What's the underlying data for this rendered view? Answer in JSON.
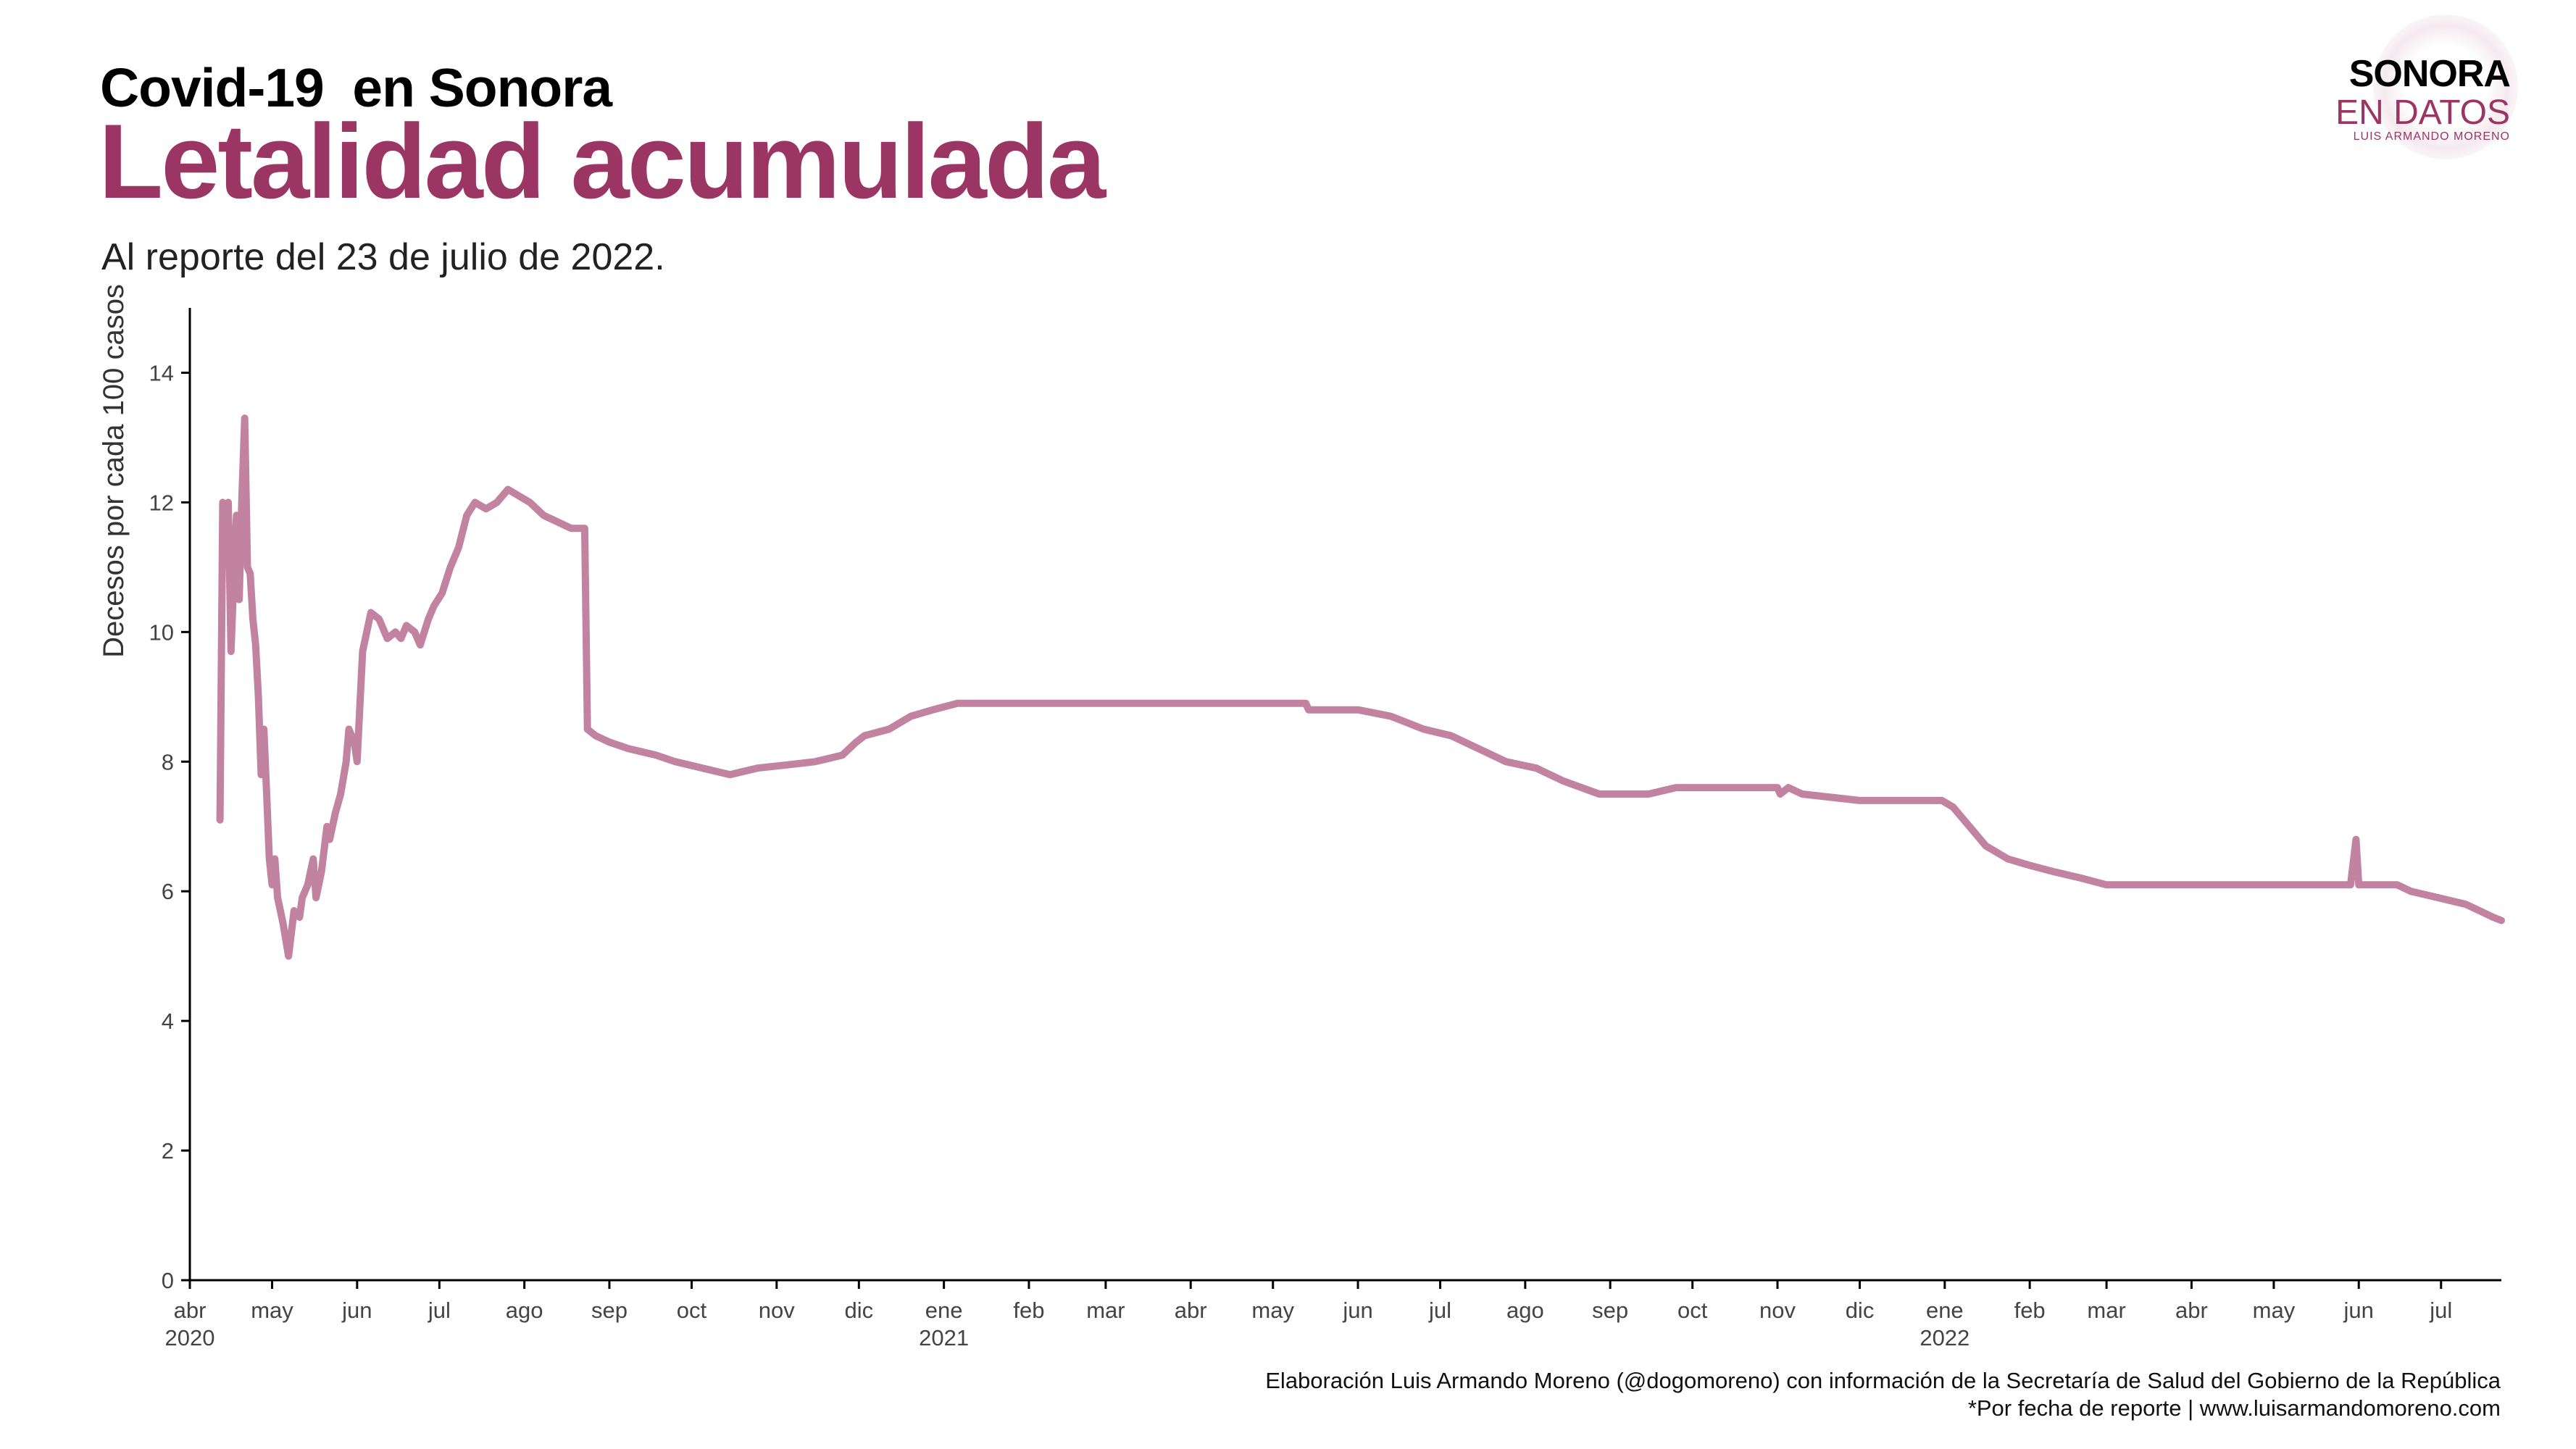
{
  "header": {
    "kicker": "Covid-19  en Sonora",
    "title": "Letalidad acumulada",
    "subtitle": "Al reporte del 23 de julio de 2022."
  },
  "logo": {
    "line1": "SONORA",
    "line2": "EN DATOS",
    "line3": "LUIS ARMANDO MORENO"
  },
  "footer": {
    "credit": "Elaboración Luis Armando Moreno (@dogomoreno) con información de la Secretaría de Salud del Gobierno de la República",
    "note": "*Por fecha de reporte | www.luisarmandomoreno.com"
  },
  "colors": {
    "accent": "#9b3564",
    "line": "#c283a1",
    "axis": "#000000"
  },
  "chart_data": {
    "type": "line",
    "title": "Letalidad acumulada",
    "subtitle": "Al reporte del 23 de julio de 2022.",
    "xlabel": "",
    "ylabel": "Decesos por cada 100 casos",
    "xlim": [
      "2020-04-01",
      "2022-07-23"
    ],
    "ylim": [
      0,
      15
    ],
    "yticks": [
      0,
      2,
      4,
      6,
      8,
      10,
      12,
      14
    ],
    "xticks": [
      {
        "date": "2020-04-01",
        "label": "abr",
        "year": "2020"
      },
      {
        "date": "2020-05-01",
        "label": "may",
        "year": ""
      },
      {
        "date": "2020-06-01",
        "label": "jun",
        "year": ""
      },
      {
        "date": "2020-07-01",
        "label": "jul",
        "year": ""
      },
      {
        "date": "2020-08-01",
        "label": "ago",
        "year": ""
      },
      {
        "date": "2020-09-01",
        "label": "sep",
        "year": ""
      },
      {
        "date": "2020-10-01",
        "label": "oct",
        "year": ""
      },
      {
        "date": "2020-11-01",
        "label": "nov",
        "year": ""
      },
      {
        "date": "2020-12-01",
        "label": "dic",
        "year": ""
      },
      {
        "date": "2021-01-01",
        "label": "ene",
        "year": "2021"
      },
      {
        "date": "2021-02-01",
        "label": "feb",
        "year": ""
      },
      {
        "date": "2021-03-01",
        "label": "mar",
        "year": ""
      },
      {
        "date": "2021-04-01",
        "label": "abr",
        "year": ""
      },
      {
        "date": "2021-05-01",
        "label": "may",
        "year": ""
      },
      {
        "date": "2021-06-01",
        "label": "jun",
        "year": ""
      },
      {
        "date": "2021-07-01",
        "label": "jul",
        "year": ""
      },
      {
        "date": "2021-08-01",
        "label": "ago",
        "year": ""
      },
      {
        "date": "2021-09-01",
        "label": "sep",
        "year": ""
      },
      {
        "date": "2021-10-01",
        "label": "oct",
        "year": ""
      },
      {
        "date": "2021-11-01",
        "label": "nov",
        "year": ""
      },
      {
        "date": "2021-12-01",
        "label": "dic",
        "year": ""
      },
      {
        "date": "2022-01-01",
        "label": "ene",
        "year": "2022"
      },
      {
        "date": "2022-02-01",
        "label": "feb",
        "year": ""
      },
      {
        "date": "2022-03-01",
        "label": "mar",
        "year": ""
      },
      {
        "date": "2022-04-01",
        "label": "abr",
        "year": ""
      },
      {
        "date": "2022-05-01",
        "label": "may",
        "year": ""
      },
      {
        "date": "2022-06-01",
        "label": "jun",
        "year": ""
      },
      {
        "date": "2022-07-01",
        "label": "jul",
        "year": ""
      }
    ],
    "grid": false,
    "legend": "none",
    "series": [
      {
        "points": [
          [
            "2020-04-12",
            7.1
          ],
          [
            "2020-04-13",
            12.0
          ],
          [
            "2020-04-14",
            11.1
          ],
          [
            "2020-04-15",
            12.0
          ],
          [
            "2020-04-16",
            9.7
          ],
          [
            "2020-04-17",
            10.8
          ],
          [
            "2020-04-18",
            11.8
          ],
          [
            "2020-04-19",
            10.5
          ],
          [
            "2020-04-20",
            12.1
          ],
          [
            "2020-04-21",
            13.3
          ],
          [
            "2020-04-22",
            11.0
          ],
          [
            "2020-04-23",
            10.9
          ],
          [
            "2020-04-24",
            10.2
          ],
          [
            "2020-04-25",
            9.8
          ],
          [
            "2020-04-26",
            9.0
          ],
          [
            "2020-04-27",
            7.8
          ],
          [
            "2020-04-28",
            8.5
          ],
          [
            "2020-04-29",
            7.5
          ],
          [
            "2020-04-30",
            6.5
          ],
          [
            "2020-05-01",
            6.1
          ],
          [
            "2020-05-02",
            6.5
          ],
          [
            "2020-05-03",
            5.9
          ],
          [
            "2020-05-05",
            5.5
          ],
          [
            "2020-05-07",
            5.0
          ],
          [
            "2020-05-09",
            5.7
          ],
          [
            "2020-05-11",
            5.6
          ],
          [
            "2020-05-12",
            5.9
          ],
          [
            "2020-05-14",
            6.1
          ],
          [
            "2020-05-16",
            6.5
          ],
          [
            "2020-05-17",
            5.9
          ],
          [
            "2020-05-19",
            6.3
          ],
          [
            "2020-05-21",
            7.0
          ],
          [
            "2020-05-22",
            6.8
          ],
          [
            "2020-05-24",
            7.2
          ],
          [
            "2020-05-26",
            7.5
          ],
          [
            "2020-05-28",
            8.0
          ],
          [
            "2020-05-29",
            8.5
          ],
          [
            "2020-05-31",
            8.3
          ],
          [
            "2020-06-01",
            8.0
          ],
          [
            "2020-06-03",
            9.7
          ],
          [
            "2020-06-06",
            10.3
          ],
          [
            "2020-06-09",
            10.2
          ],
          [
            "2020-06-12",
            9.9
          ],
          [
            "2020-06-15",
            10.0
          ],
          [
            "2020-06-17",
            9.9
          ],
          [
            "2020-06-19",
            10.1
          ],
          [
            "2020-06-22",
            10.0
          ],
          [
            "2020-06-24",
            9.8
          ],
          [
            "2020-06-27",
            10.2
          ],
          [
            "2020-06-29",
            10.4
          ],
          [
            "2020-07-02",
            10.6
          ],
          [
            "2020-07-05",
            11.0
          ],
          [
            "2020-07-08",
            11.3
          ],
          [
            "2020-07-11",
            11.8
          ],
          [
            "2020-07-14",
            12.0
          ],
          [
            "2020-07-18",
            11.9
          ],
          [
            "2020-07-22",
            12.0
          ],
          [
            "2020-07-26",
            12.2
          ],
          [
            "2020-07-30",
            12.1
          ],
          [
            "2020-08-03",
            12.0
          ],
          [
            "2020-08-08",
            11.8
          ],
          [
            "2020-08-13",
            11.7
          ],
          [
            "2020-08-18",
            11.6
          ],
          [
            "2020-08-23",
            11.6
          ],
          [
            "2020-08-24",
            8.5
          ],
          [
            "2020-08-27",
            8.4
          ],
          [
            "2020-09-01",
            8.3
          ],
          [
            "2020-09-08",
            8.2
          ],
          [
            "2020-09-18",
            8.1
          ],
          [
            "2020-09-25",
            8.0
          ],
          [
            "2020-10-05",
            7.9
          ],
          [
            "2020-10-15",
            7.8
          ],
          [
            "2020-10-25",
            7.9
          ],
          [
            "2020-11-05",
            7.95
          ],
          [
            "2020-11-15",
            8.0
          ],
          [
            "2020-11-25",
            8.1
          ],
          [
            "2020-11-30",
            8.3
          ],
          [
            "2020-12-03",
            8.4
          ],
          [
            "2020-12-12",
            8.5
          ],
          [
            "2020-12-20",
            8.7
          ],
          [
            "2020-12-28",
            8.8
          ],
          [
            "2021-01-06",
            8.9
          ],
          [
            "2021-02-01",
            8.9
          ],
          [
            "2021-03-01",
            8.9
          ],
          [
            "2021-04-01",
            8.9
          ],
          [
            "2021-05-01",
            8.9
          ],
          [
            "2021-05-13",
            8.9
          ],
          [
            "2021-05-14",
            8.8
          ],
          [
            "2021-06-01",
            8.8
          ],
          [
            "2021-06-13",
            8.7
          ],
          [
            "2021-06-25",
            8.5
          ],
          [
            "2021-07-05",
            8.4
          ],
          [
            "2021-07-15",
            8.2
          ],
          [
            "2021-07-25",
            8.0
          ],
          [
            "2021-08-05",
            7.9
          ],
          [
            "2021-08-15",
            7.7
          ],
          [
            "2021-08-28",
            7.5
          ],
          [
            "2021-09-15",
            7.5
          ],
          [
            "2021-09-25",
            7.6
          ],
          [
            "2021-10-15",
            7.6
          ],
          [
            "2021-11-01",
            7.6
          ],
          [
            "2021-11-02",
            7.5
          ],
          [
            "2021-11-05",
            7.6
          ],
          [
            "2021-11-10",
            7.5
          ],
          [
            "2021-12-01",
            7.4
          ],
          [
            "2021-12-31",
            7.4
          ],
          [
            "2022-01-04",
            7.3
          ],
          [
            "2022-01-10",
            7.0
          ],
          [
            "2022-01-16",
            6.7
          ],
          [
            "2022-01-24",
            6.5
          ],
          [
            "2022-02-01",
            6.4
          ],
          [
            "2022-02-10",
            6.3
          ],
          [
            "2022-02-20",
            6.2
          ],
          [
            "2022-03-01",
            6.1
          ],
          [
            "2022-03-15",
            6.1
          ],
          [
            "2022-04-01",
            6.1
          ],
          [
            "2022-05-01",
            6.1
          ],
          [
            "2022-05-29",
            6.1
          ],
          [
            "2022-05-31",
            6.8
          ],
          [
            "2022-06-01",
            6.1
          ],
          [
            "2022-06-15",
            6.1
          ],
          [
            "2022-06-20",
            6.0
          ],
          [
            "2022-06-30",
            5.9
          ],
          [
            "2022-07-10",
            5.8
          ],
          [
            "2022-07-15",
            5.7
          ],
          [
            "2022-07-20",
            5.6
          ],
          [
            "2022-07-23",
            5.55
          ]
        ]
      }
    ]
  }
}
